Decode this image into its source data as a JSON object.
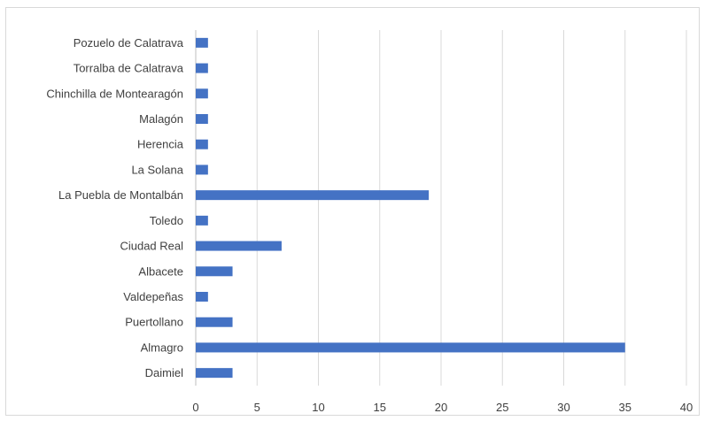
{
  "chart_data": {
    "type": "bar",
    "orientation": "horizontal",
    "categories": [
      "Pozuelo de Calatrava",
      "Torralba de Calatrava",
      "Chinchilla de Montearagón",
      "Malagón",
      "Herencia",
      "La Solana",
      "La Puebla de Montalbán",
      "Toledo",
      "Ciudad Real",
      "Albacete",
      "Valdepeñas",
      "Puertollano",
      "Almagro",
      "Daimiel"
    ],
    "values": [
      1,
      1,
      1,
      1,
      1,
      1,
      19,
      1,
      7,
      3,
      1,
      3,
      35,
      3
    ],
    "xlim": [
      0,
      40
    ],
    "xticks": [
      "0",
      "5",
      "10",
      "15",
      "20",
      "25",
      "30",
      "35",
      "40"
    ],
    "grid": true,
    "bar_color": "#4472c4",
    "grid_color": "#d9d9d9",
    "title": "",
    "xlabel": "",
    "ylabel": ""
  }
}
